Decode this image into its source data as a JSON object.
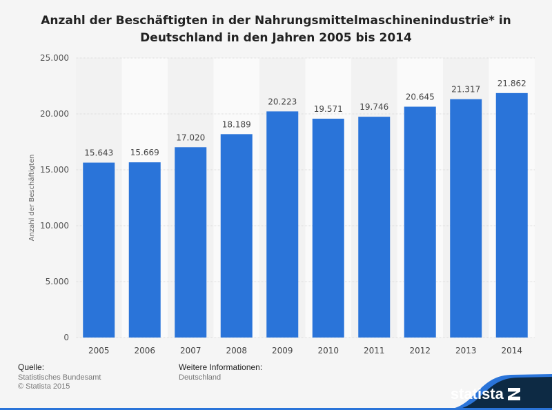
{
  "chart_data": {
    "type": "bar",
    "title": "Anzahl der Beschäftigten in der Nahrungsmittelmaschinenindustrie* in Deutschland in den Jahren 2005 bis 2014",
    "categories": [
      "2005",
      "2006",
      "2007",
      "2008",
      "2009",
      "2010",
      "2011",
      "2012",
      "2013",
      "2014"
    ],
    "values": [
      15643,
      15669,
      17020,
      18189,
      20223,
      19571,
      19746,
      20645,
      21317,
      21862
    ],
    "value_labels": [
      "15.643",
      "15.669",
      "17.020",
      "18.189",
      "20.223",
      "19.571",
      "19.746",
      "20.645",
      "21.317",
      "21.862"
    ],
    "xlabel": "",
    "ylabel": "Anzahl der Beschäftigten",
    "ylim": [
      0,
      25000
    ],
    "yticks": [
      0,
      5000,
      10000,
      15000,
      20000,
      25000
    ],
    "ytick_labels": [
      "0",
      "5.000",
      "10.000",
      "15.000",
      "20.000",
      "25.000"
    ],
    "grid": true,
    "bar_color": "#2a74d9"
  },
  "footer": {
    "source_heading": "Quelle:",
    "source": "Statistisches Bundesamt",
    "copyright": "© Statista 2015",
    "info_heading": "Weitere Informationen:",
    "info": "Deutschland"
  },
  "logo": {
    "text": "statista",
    "bg": "#0d2a44",
    "accent": "#2a74d9"
  }
}
